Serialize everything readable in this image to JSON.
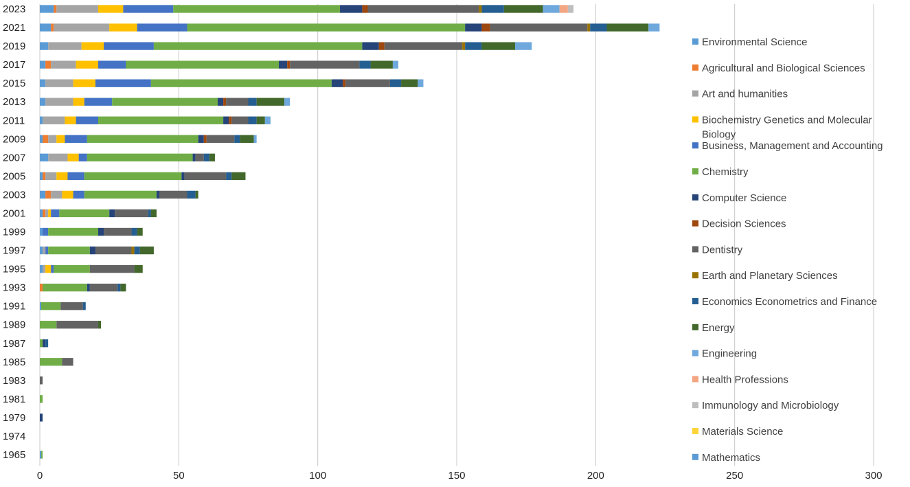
{
  "chart_data": {
    "type": "bar",
    "orientation": "horizontal",
    "stacked": true,
    "grid": true,
    "legend_position": "right",
    "xlim": [
      0,
      300
    ],
    "x_ticks": [
      0,
      50,
      100,
      150,
      200,
      250,
      300
    ],
    "x_tick_labels": [
      "0",
      "50",
      "100",
      "150",
      "200",
      "250",
      "300"
    ],
    "categories": [
      "1965",
      "1974",
      "1979",
      "1981",
      "1983",
      "1985",
      "1987",
      "1989",
      "1991",
      "1993",
      "1995",
      "1997",
      "1999",
      "2001",
      "2003",
      "2005",
      "2007",
      "2009",
      "2011",
      "2013",
      "2015",
      "2017",
      "2019",
      "2021",
      "2023"
    ],
    "y_tick_labels": [
      "2023",
      "2021",
      "2019",
      "2017",
      "2015",
      "2013",
      "2011",
      "2009",
      "2007",
      "2005",
      "2003",
      "2001",
      "1999",
      "1997",
      "1995",
      "1993",
      "1991",
      "1989",
      "1987",
      "1985",
      "1983",
      "1981",
      "1979",
      "1974",
      "1965"
    ],
    "series": [
      {
        "name": "Environmental Science",
        "color": "#5B9BD5",
        "values": [
          0.5,
          0,
          0,
          0,
          0,
          0,
          0,
          0,
          0.5,
          0,
          1,
          1,
          1,
          1,
          2,
          1,
          3,
          1,
          1,
          2,
          2,
          2,
          3,
          4,
          5
        ]
      },
      {
        "name": "Agricultural and Biological Sciences",
        "color": "#ED7D31",
        "values": [
          0,
          0,
          0,
          0,
          0,
          0,
          0,
          0,
          0,
          1,
          0,
          0,
          0,
          1,
          2,
          1,
          0,
          2,
          0,
          0,
          0,
          2,
          0,
          1,
          1
        ]
      },
      {
        "name": "Art and humanities",
        "color": "#A5A5A5",
        "values": [
          0,
          0,
          0,
          0,
          0,
          0,
          0,
          0,
          0,
          0,
          1,
          1,
          0,
          1,
          4,
          4,
          7,
          3,
          8,
          10,
          10,
          9,
          12,
          20,
          15
        ]
      },
      {
        "name": "Biochemistry Genetics and Molecular Biology",
        "color": "#FFC000",
        "values": [
          0,
          0,
          0,
          0,
          0,
          0,
          0,
          0,
          0,
          0,
          2,
          0,
          0,
          1,
          4,
          4,
          4,
          3,
          4,
          4,
          8,
          8,
          8,
          10,
          9
        ]
      },
      {
        "name": "Business, Management and Accounting",
        "color": "#4472C4",
        "values": [
          0,
          0,
          0,
          0,
          0,
          0,
          0,
          0,
          0,
          0,
          1,
          1,
          2,
          3,
          4,
          6,
          3,
          8,
          8,
          10,
          20,
          10,
          18,
          18,
          18
        ]
      },
      {
        "name": "Chemistry",
        "color": "#70AD47",
        "values": [
          0.5,
          0,
          0,
          1,
          0,
          8,
          1,
          6,
          7,
          16,
          13,
          15,
          18,
          18,
          26,
          35,
          38,
          40,
          45,
          38,
          65,
          55,
          75,
          100,
          60
        ]
      },
      {
        "name": "Computer Science",
        "color": "#264478",
        "values": [
          0,
          0,
          1,
          0,
          0,
          0,
          1,
          0,
          0,
          1,
          0,
          2,
          2,
          2,
          1,
          1,
          1,
          2,
          2,
          2,
          4,
          3,
          6,
          6,
          8
        ]
      },
      {
        "name": "Decision Sciences",
        "color": "#9E480E",
        "values": [
          0,
          0,
          0,
          0,
          0,
          0,
          0,
          0,
          0,
          0,
          0,
          0,
          0,
          0,
          0,
          0,
          0,
          1,
          1,
          1,
          1,
          1,
          2,
          3,
          2
        ]
      },
      {
        "name": "Dentistry",
        "color": "#636363",
        "values": [
          0,
          0,
          0,
          0,
          1,
          4,
          0,
          15,
          8,
          10,
          16,
          13,
          10,
          12,
          10,
          15,
          3,
          10,
          6,
          8,
          16,
          25,
          28,
          35,
          40
        ]
      },
      {
        "name": "Earth and Planetary Sciences",
        "color": "#997300",
        "values": [
          0,
          0,
          0,
          0,
          0,
          0,
          0,
          0,
          0,
          0,
          0,
          1,
          0,
          0,
          0,
          0,
          0,
          0,
          0,
          0,
          0,
          0,
          1,
          1,
          1
        ]
      },
      {
        "name": "Economics Econometrics and Finance",
        "color": "#255E91",
        "values": [
          0,
          0,
          0,
          0,
          0,
          0,
          1,
          0,
          1,
          1,
          0,
          2,
          2,
          1,
          3,
          2,
          2,
          2,
          3,
          3,
          4,
          4,
          6,
          6,
          8
        ]
      },
      {
        "name": "Energy",
        "color": "#43682B",
        "values": [
          0,
          0,
          0,
          0,
          0,
          0,
          0,
          1,
          0,
          2,
          3,
          5,
          2,
          2,
          1,
          5,
          2,
          5,
          3,
          10,
          6,
          8,
          12,
          15,
          14
        ]
      },
      {
        "name": "Engineering",
        "color": "#6FA8DC",
        "values": [
          0,
          0,
          0,
          0,
          0,
          0,
          0,
          0,
          0,
          0,
          0,
          0,
          0,
          0,
          0,
          0,
          0,
          1,
          2,
          2,
          2,
          2,
          6,
          4,
          6
        ]
      },
      {
        "name": "Health Professions",
        "color": "#F4A582",
        "values": [
          0,
          0,
          0,
          0,
          0,
          0,
          0,
          0,
          0,
          0,
          0,
          0,
          0,
          0,
          0,
          0,
          0,
          0,
          0,
          0,
          0,
          0,
          0,
          0,
          3
        ]
      },
      {
        "name": "Immunology and Microbiology",
        "color": "#BDBDBD",
        "values": [
          0,
          0,
          0,
          0,
          0,
          0,
          0,
          0,
          0,
          0,
          0,
          0,
          0,
          0,
          0,
          0,
          0,
          0,
          0,
          0,
          0,
          0,
          0,
          0,
          2
        ]
      },
      {
        "name": "Materials Science",
        "color": "#FFD43B",
        "values": [
          0,
          0,
          0,
          0,
          0,
          0,
          0,
          0,
          0,
          0,
          0,
          0,
          0,
          0,
          0,
          0,
          0,
          0,
          0,
          0,
          0,
          0,
          0,
          0,
          0
        ]
      },
      {
        "name": "Mathematics",
        "color": "#5B9BD5",
        "values": [
          0,
          0,
          0,
          0,
          0,
          0,
          0,
          0,
          0,
          0,
          0,
          0,
          0,
          0,
          0,
          0,
          0,
          0,
          0,
          0,
          0,
          0,
          0,
          0,
          0
        ]
      }
    ]
  }
}
